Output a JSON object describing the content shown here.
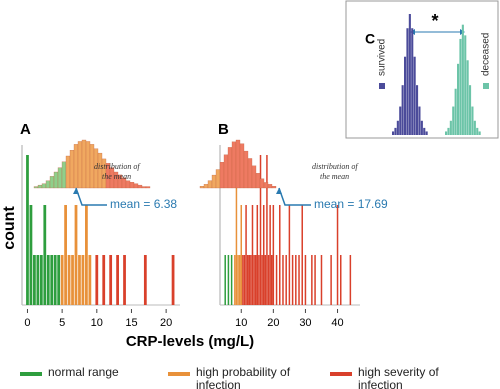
{
  "chart_data": [
    {
      "type": "histogram",
      "title": "A",
      "xlabel": "CRP-levels (mg/L)",
      "ylabel": "count",
      "xlim": [
        -0.5,
        22
      ],
      "xticks": [
        0,
        5,
        10,
        15,
        20
      ],
      "ylim": [
        0,
        3.2
      ],
      "series": [
        {
          "name": "normal range",
          "color": "#2e9e3e",
          "x": [
            0,
            0.5,
            1,
            1.5,
            2,
            2.5,
            3,
            3.5,
            4,
            4.5
          ],
          "values": [
            3,
            2,
            1,
            1,
            1,
            2,
            1,
            1,
            1,
            1
          ]
        },
        {
          "name": "high probability of infection",
          "color": "#e8913a",
          "x": [
            5,
            5.5,
            6,
            6.5,
            7,
            7.5,
            8,
            8.5,
            9
          ],
          "values": [
            1,
            2,
            1,
            1,
            2,
            1,
            1,
            2,
            1
          ]
        },
        {
          "name": "high severity of infection",
          "color": "#d9402b",
          "x": [
            10,
            11,
            12,
            13,
            14,
            17,
            21
          ],
          "values": [
            1,
            1,
            1,
            1,
            1,
            1,
            1
          ]
        }
      ],
      "inset": {
        "title": "distribution of the mean",
        "annotation": "mean = 6.38",
        "series": [
          {
            "color": "#8fcf8a",
            "values": [
              1,
              2,
              3,
              5,
              8,
              11,
              14,
              18
            ]
          },
          {
            "color": "#f0a860",
            "values": [
              22,
              26,
              30,
              32,
              33,
              32,
              30,
              27,
              24,
              20
            ]
          },
          {
            "color": "#ee7a62",
            "values": [
              17,
              14,
              11,
              9,
              7,
              5,
              4,
              3,
              2,
              1,
              1
            ]
          }
        ]
      }
    },
    {
      "type": "histogram",
      "title": "B",
      "xlim": [
        4,
        47
      ],
      "xticks": [
        10,
        20,
        30,
        40
      ],
      "ylim": [
        0,
        3.2
      ],
      "series": [
        {
          "color": "#2e9e3e",
          "x": [
            5,
            6,
            7
          ],
          "values": [
            1,
            1,
            1
          ]
        },
        {
          "color": "#e8913a",
          "x": [
            8,
            8.5,
            9,
            9.5,
            10
          ],
          "values": [
            1,
            3,
            1,
            1,
            2
          ]
        },
        {
          "color": "#d9402b",
          "x": [
            10.5,
            11,
            11.5,
            12,
            12.5,
            13,
            13.5,
            14,
            14.5,
            15,
            15.5,
            16,
            16.5,
            17,
            17.5,
            18,
            18.5,
            19,
            19.5,
            20,
            21,
            22,
            23,
            24,
            25,
            26,
            27,
            28,
            29,
            30,
            32,
            33,
            35,
            38,
            40,
            41,
            44
          ],
          "values": [
            1,
            1,
            2,
            1,
            1,
            1,
            2,
            1,
            1,
            2,
            1,
            3,
            1,
            2,
            1,
            3,
            1,
            2,
            1,
            2,
            1,
            2,
            1,
            1,
            2,
            1,
            1,
            1,
            2,
            1,
            1,
            1,
            1,
            1,
            2,
            1,
            1
          ]
        }
      ],
      "inset": {
        "title": "distribution of the mean",
        "annotation": "mean = 17.69",
        "series": [
          {
            "color": "#f0a860",
            "values": [
              1,
              2,
              4,
              7,
              10
            ]
          },
          {
            "color": "#ee7a62",
            "values": [
              14,
              18,
              22,
              25,
              26,
              24,
              20,
              16,
              12,
              8,
              5,
              3,
              2,
              1
            ]
          }
        ]
      }
    },
    {
      "type": "distribution",
      "title": "C",
      "annotation": "*",
      "series": [
        {
          "name": "survived",
          "color": "#4b4b9a",
          "values": [
            1,
            2,
            4,
            8,
            14,
            22,
            30,
            34,
            30,
            22,
            14,
            8,
            4,
            2,
            1
          ]
        },
        {
          "name": "deceased",
          "color": "#6cc4a8",
          "values": [
            1,
            2,
            4,
            8,
            13,
            20,
            27,
            31,
            28,
            21,
            14,
            8,
            4,
            2,
            1
          ]
        }
      ]
    }
  ]
}
